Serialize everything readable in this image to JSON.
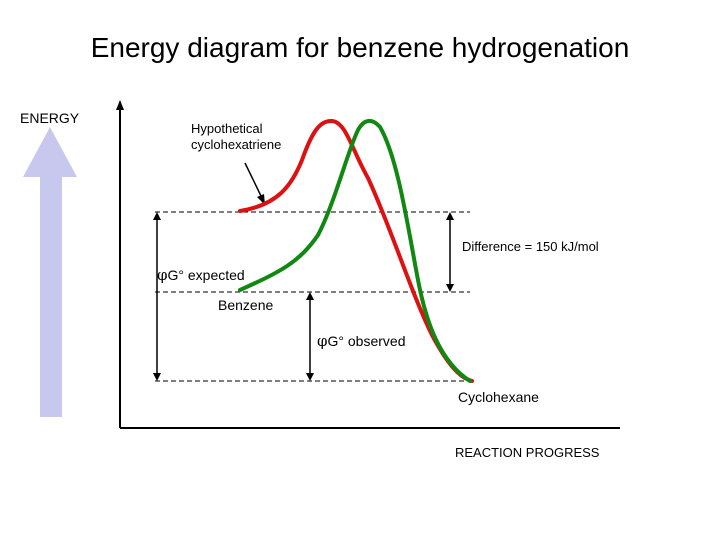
{
  "title": "Energy diagram for benzene hydrogenation",
  "labels": {
    "energy": "ENERGY",
    "hypothetical_line1": "Hypothetical",
    "hypothetical_line2": "cyclohexatriene",
    "difference": "Difference = 150 kJ/mol",
    "expected_symbol": "φ",
    "expected_text": "G° expected",
    "benzene": "Benzene",
    "observed_symbol": "φ",
    "observed_text": "G° observed",
    "cyclohexane": "Cyclohexane",
    "reaction_progress": "REACTION PROGRESS"
  },
  "colors": {
    "hypothetical_curve": "#dd1111",
    "benzene_curve": "#118811",
    "energy_arrow": "#c8c8ee",
    "axis": "#000000",
    "dashed_level": "#000000"
  }
}
